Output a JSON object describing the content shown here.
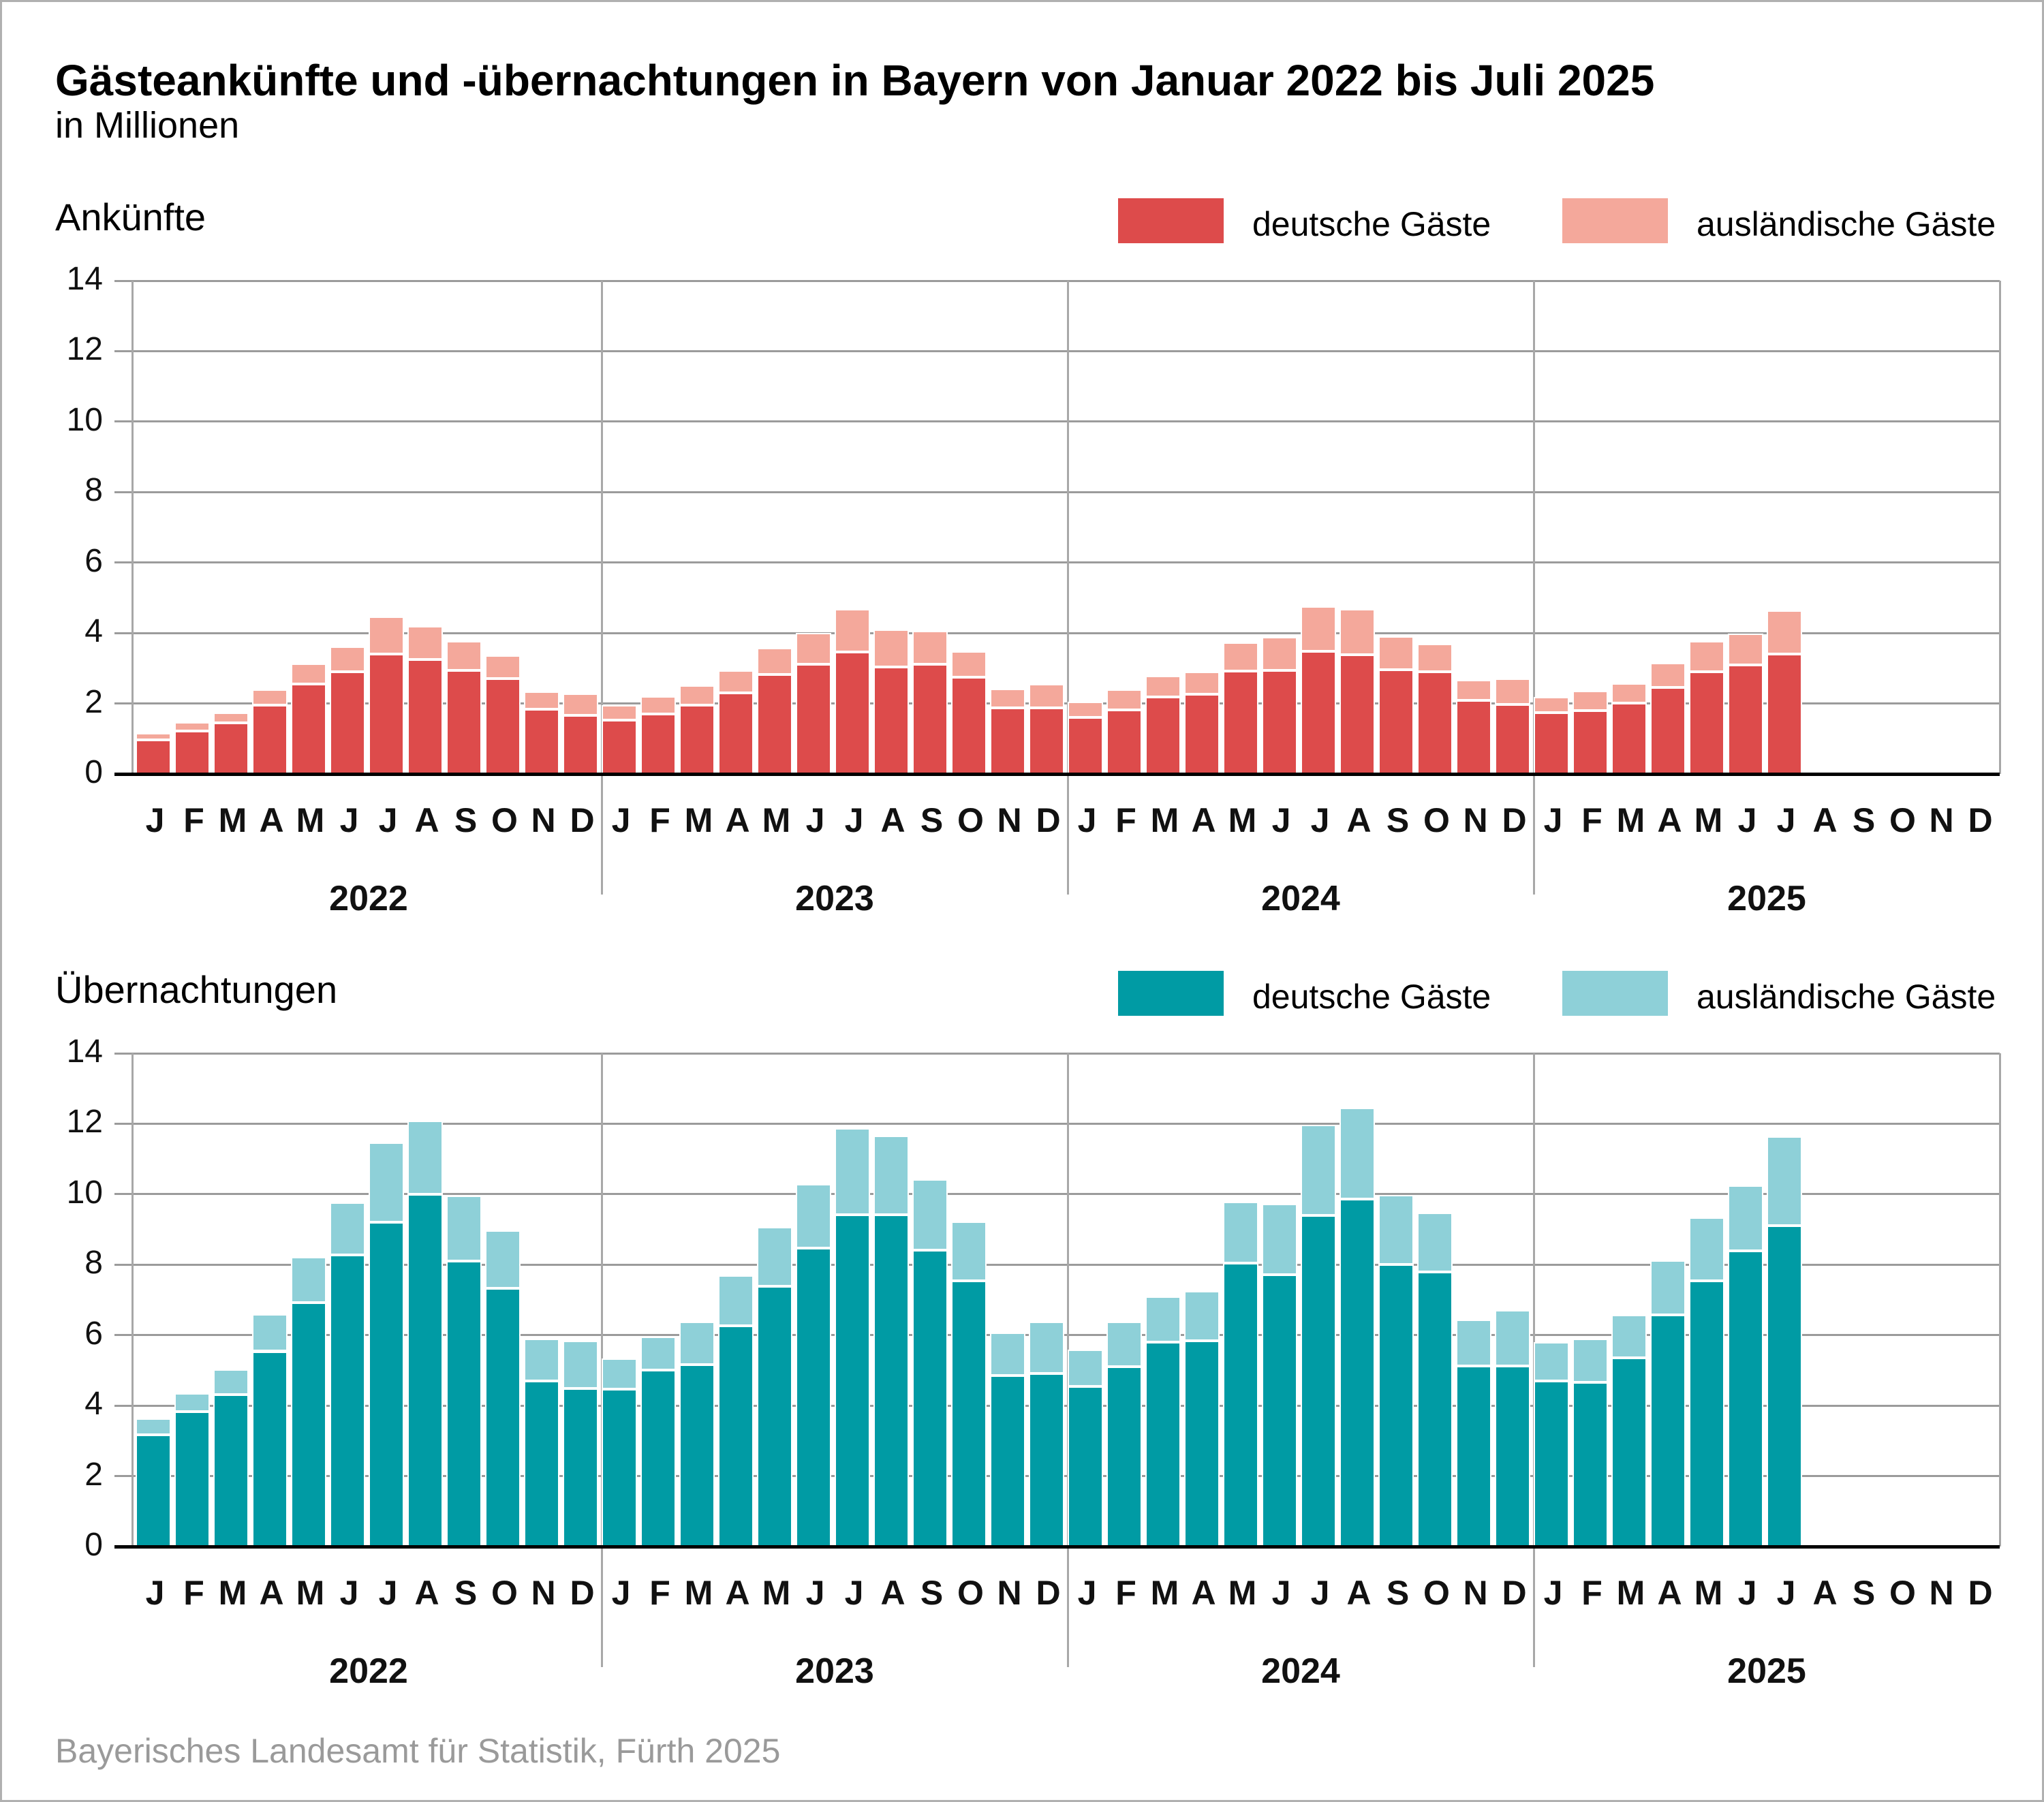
{
  "page": {
    "title": "Gästeankünfte und -übernachtungen in Bayern von Januar 2022 bis Juli 2025",
    "subtitle": "in Millionen",
    "source": "Bayerisches Landesamt für Statistik, Fürth 2025"
  },
  "legend": {
    "german_label": "deutsche Gäste",
    "foreign_label": "ausländische Gäste"
  },
  "axis": {
    "y_ticks": [
      14,
      12,
      10,
      8,
      6,
      4,
      2,
      0
    ],
    "month_letters": [
      "J",
      "F",
      "M",
      "A",
      "M",
      "J",
      "J",
      "A",
      "S",
      "O",
      "N",
      "D"
    ],
    "years": [
      "2022",
      "2023",
      "2024",
      "2025"
    ]
  },
  "colors": {
    "arrivals_german": "#dd4b4b",
    "arrivals_foreign": "#f4a89b",
    "overnights_german": "#009ba4",
    "overnights_foreign": "#8ed0d8",
    "gridline": "#9b9b9b",
    "axis_line": "#000000",
    "source_text": "#9a9a9a"
  },
  "chart_data": [
    {
      "type": "bar",
      "stacked": true,
      "title": "Ankünfte",
      "ylabel": "in Millionen",
      "ylim": [
        0,
        14
      ],
      "grid": true,
      "legend_position": "top-right",
      "categories": [
        "2022-01",
        "2022-02",
        "2022-03",
        "2022-04",
        "2022-05",
        "2022-06",
        "2022-07",
        "2022-08",
        "2022-09",
        "2022-10",
        "2022-11",
        "2022-12",
        "2023-01",
        "2023-02",
        "2023-03",
        "2023-04",
        "2023-05",
        "2023-06",
        "2023-07",
        "2023-08",
        "2023-09",
        "2023-10",
        "2023-11",
        "2023-12",
        "2024-01",
        "2024-02",
        "2024-03",
        "2024-04",
        "2024-05",
        "2024-06",
        "2024-07",
        "2024-08",
        "2024-09",
        "2024-10",
        "2024-11",
        "2024-12",
        "2025-01",
        "2025-02",
        "2025-03",
        "2025-04",
        "2025-05",
        "2025-06",
        "2025-07",
        "2025-08",
        "2025-09",
        "2025-10",
        "2025-11",
        "2025-12"
      ],
      "series": [
        {
          "name": "deutsche Gäste",
          "color": "#dd4b4b",
          "values": [
            0.97,
            1.21,
            1.45,
            1.95,
            2.56,
            2.9,
            3.41,
            3.25,
            2.94,
            2.7,
            1.83,
            1.67,
            1.53,
            1.7,
            1.96,
            2.31,
            2.82,
            3.12,
            3.46,
            3.04,
            3.11,
            2.75,
            1.87,
            1.88,
            1.6,
            1.81,
            2.19,
            2.26,
            2.92,
            2.93,
            3.48,
            3.39,
            2.95,
            2.9,
            2.08,
            1.98,
            1.74,
            1.8,
            2.02,
            2.45,
            2.91,
            3.09,
            3.4,
            null,
            null,
            null,
            null,
            null
          ]
        },
        {
          "name": "ausländische Gäste",
          "color": "#f4a89b",
          "values": [
            0.19,
            0.26,
            0.3,
            0.45,
            0.58,
            0.71,
            1.05,
            0.94,
            0.83,
            0.66,
            0.51,
            0.61,
            0.43,
            0.5,
            0.55,
            0.63,
            0.76,
            0.88,
            1.22,
            1.06,
            0.95,
            0.73,
            0.54,
            0.67,
            0.45,
            0.58,
            0.6,
            0.65,
            0.81,
            0.95,
            1.28,
            1.29,
            0.96,
            0.8,
            0.58,
            0.73,
            0.44,
            0.55,
            0.56,
            0.7,
            0.86,
            0.9,
            1.25,
            null,
            null,
            null,
            null,
            null
          ]
        }
      ]
    },
    {
      "type": "bar",
      "stacked": true,
      "title": "Übernachtungen",
      "ylabel": "in Millionen",
      "ylim": [
        0,
        14
      ],
      "grid": true,
      "legend_position": "top-right",
      "categories": [
        "2022-01",
        "2022-02",
        "2022-03",
        "2022-04",
        "2022-05",
        "2022-06",
        "2022-07",
        "2022-08",
        "2022-09",
        "2022-10",
        "2022-11",
        "2022-12",
        "2023-01",
        "2023-02",
        "2023-03",
        "2023-04",
        "2023-05",
        "2023-06",
        "2023-07",
        "2023-08",
        "2023-09",
        "2023-10",
        "2023-11",
        "2023-12",
        "2024-01",
        "2024-02",
        "2024-03",
        "2024-04",
        "2024-05",
        "2024-06",
        "2024-07",
        "2024-08",
        "2024-09",
        "2024-10",
        "2024-11",
        "2024-12",
        "2025-01",
        "2025-02",
        "2025-03",
        "2025-04",
        "2025-05",
        "2025-06",
        "2025-07",
        "2025-08",
        "2025-09",
        "2025-10",
        "2025-11",
        "2025-12"
      ],
      "series": [
        {
          "name": "deutsche Gäste",
          "color": "#009ba4",
          "values": [
            3.17,
            3.83,
            4.32,
            5.54,
            6.93,
            8.28,
            9.21,
            10.0,
            8.11,
            7.33,
            4.7,
            4.48,
            4.46,
            5.0,
            5.17,
            6.27,
            7.38,
            8.46,
            9.41,
            9.41,
            8.41,
            7.54,
            4.86,
            4.91,
            4.54,
            5.11,
            5.8,
            5.84,
            8.04,
            7.72,
            9.4,
            9.86,
            8.0,
            7.8,
            5.13,
            5.13,
            4.7,
            4.66,
            5.36,
            6.58,
            7.55,
            8.39,
            9.1,
            null,
            null,
            null,
            null,
            null
          ]
        },
        {
          "name": "ausländische Gäste",
          "color": "#8ed0d8",
          "values": [
            0.47,
            0.52,
            0.7,
            1.05,
            1.29,
            1.49,
            2.25,
            2.08,
            1.84,
            1.65,
            1.19,
            1.36,
            0.87,
            0.95,
            1.21,
            1.43,
            1.69,
            1.82,
            2.47,
            2.25,
            2.02,
            1.69,
            1.21,
            1.48,
            1.05,
            1.28,
            1.29,
            1.42,
            1.74,
            2.0,
            2.56,
            2.59,
            1.97,
            1.68,
            1.31,
            1.58,
            1.11,
            1.24,
            1.22,
            1.54,
            1.79,
            1.85,
            2.55,
            null,
            null,
            null,
            null,
            null
          ]
        }
      ]
    }
  ]
}
